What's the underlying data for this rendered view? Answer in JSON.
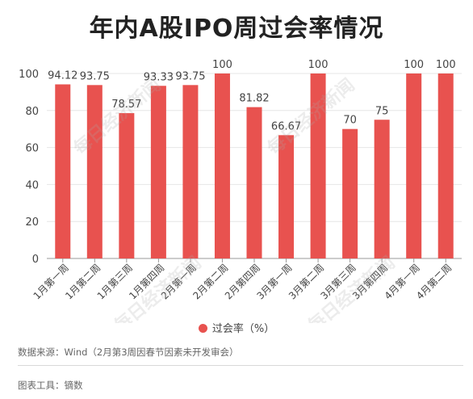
{
  "title": "年内A股IPO周过会率情况",
  "legend_label": "过会率（%）",
  "source_text": "数据来源：Wind（2月第3周因春节因素未开发审会）",
  "tool_text": "图表工具：镝数",
  "watermark_text": "每日经济新闻",
  "colors": {
    "bar": "#e8524f",
    "grid": "#e6e6e6",
    "axis": "#999999"
  },
  "chart_data": {
    "type": "bar",
    "categories": [
      "1月第一周",
      "1月第二周",
      "1月第三周",
      "1月第四周",
      "2月第一周",
      "2月第二周",
      "2月第四周",
      "3月第一周",
      "3月第二周",
      "3月第三周",
      "3月第四周",
      "4月第一周",
      "4月第二周"
    ],
    "series": [
      {
        "name": "过会率（%）",
        "values": [
          94.12,
          93.75,
          78.57,
          93.33,
          93.75,
          100,
          81.82,
          66.67,
          100,
          70,
          75,
          100,
          100
        ],
        "labels": [
          "94.12",
          "93.75",
          "78.57",
          "93.33",
          "93.75",
          "100",
          "81.82",
          "66.67",
          "100",
          "70",
          "75",
          "100",
          "100"
        ]
      }
    ],
    "yticks": [
      0,
      20,
      40,
      60,
      80,
      100
    ],
    "ylim": [
      0,
      100
    ],
    "grid": true,
    "legend_position": "bottom"
  }
}
